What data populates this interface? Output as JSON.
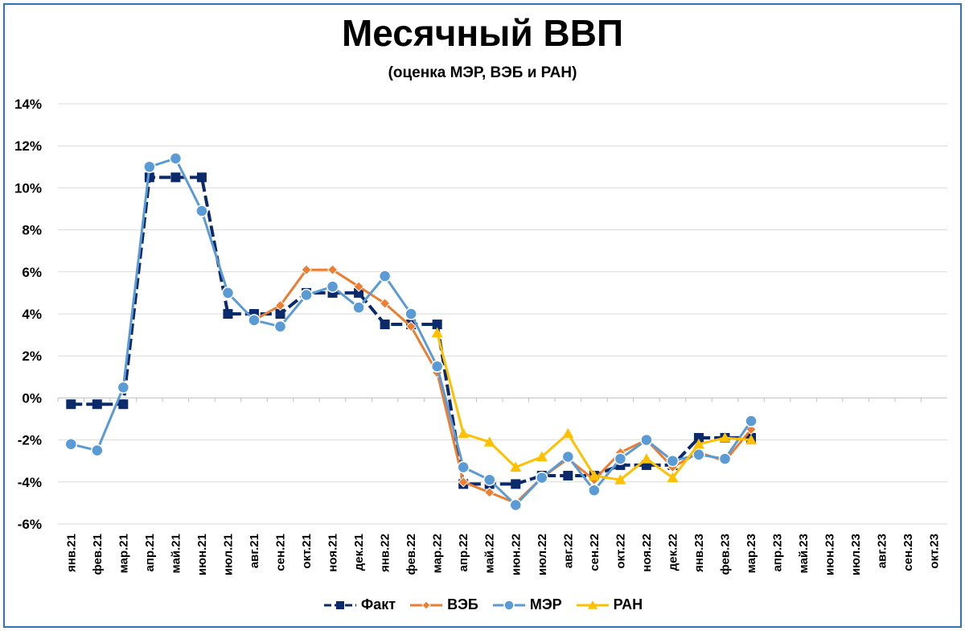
{
  "chart_data": {
    "type": "line",
    "title": "Месячный ВВП",
    "subtitle": "(оценка МЭР, ВЭБ и РАН)",
    "categories": [
      "янв.21",
      "фев.21",
      "мар.21",
      "апр.21",
      "май.21",
      "июн.21",
      "июл.21",
      "авг.21",
      "сен.21",
      "окт.21",
      "ноя.21",
      "дек.21",
      "янв.22",
      "фев.22",
      "мар.22",
      "апр.22",
      "май.22",
      "июн.22",
      "июл.22",
      "авг.22",
      "сен.22",
      "окт.22",
      "ноя.22",
      "дек.22",
      "янв.23",
      "фев.23",
      "мар.23",
      "апр.23",
      "май.23",
      "июн.23",
      "июл.23",
      "авг.23",
      "сен.23",
      "окт.23"
    ],
    "y_ticks": [
      "14%",
      "12%",
      "10%",
      "8%",
      "6%",
      "4%",
      "2%",
      "0%",
      "-2%",
      "-4%",
      "-6%"
    ],
    "ylim": [
      -6,
      14
    ],
    "y_unit": "%",
    "grid": true,
    "legend_position": "bottom",
    "series": [
      {
        "name": "Факт",
        "color": "#0b2a6b",
        "marker": "square",
        "dashed": true,
        "values": [
          -0.3,
          -0.3,
          -0.3,
          10.5,
          10.5,
          10.5,
          4.0,
          4.0,
          4.0,
          5.0,
          5.0,
          5.0,
          3.5,
          3.5,
          3.5,
          -4.1,
          -4.1,
          -4.1,
          -3.7,
          -3.7,
          -3.7,
          -3.2,
          -3.2,
          -3.2,
          -1.9,
          -1.9,
          -1.9,
          null,
          null,
          null,
          null,
          null,
          null,
          null
        ]
      },
      {
        "name": "ВЭБ",
        "color": "#ed7d31",
        "marker": "diamond",
        "dashed": false,
        "values": [
          null,
          null,
          null,
          null,
          null,
          null,
          null,
          3.7,
          4.4,
          6.1,
          6.1,
          5.3,
          4.5,
          3.4,
          1.2,
          -4.0,
          -4.5,
          -5.0,
          -3.8,
          -2.9,
          -3.9,
          -2.6,
          -2.0,
          -3.3,
          -2.6,
          -3.0,
          -1.5,
          null,
          null,
          null,
          null,
          null,
          null,
          null
        ]
      },
      {
        "name": "МЭР",
        "color": "#5b9bd5",
        "marker": "circle",
        "dashed": false,
        "values": [
          -2.2,
          -2.5,
          0.5,
          11.0,
          11.4,
          8.9,
          5.0,
          3.7,
          3.4,
          4.9,
          5.3,
          4.3,
          5.8,
          4.0,
          1.5,
          -3.3,
          -3.9,
          -5.1,
          -3.8,
          -2.8,
          -4.4,
          -2.9,
          -2.0,
          -3.0,
          -2.7,
          -2.9,
          -1.1,
          null,
          null,
          null,
          null,
          null,
          null,
          null
        ]
      },
      {
        "name": "РАН",
        "color": "#ffc000",
        "marker": "triangle",
        "dashed": false,
        "values": [
          null,
          null,
          null,
          null,
          null,
          null,
          null,
          null,
          null,
          null,
          null,
          null,
          null,
          null,
          3.1,
          -1.7,
          -2.1,
          -3.3,
          -2.8,
          -1.7,
          -3.7,
          -3.9,
          -2.9,
          -3.8,
          -2.2,
          -1.9,
          -2.0,
          null,
          null,
          null,
          null,
          null,
          null,
          null
        ]
      }
    ]
  }
}
